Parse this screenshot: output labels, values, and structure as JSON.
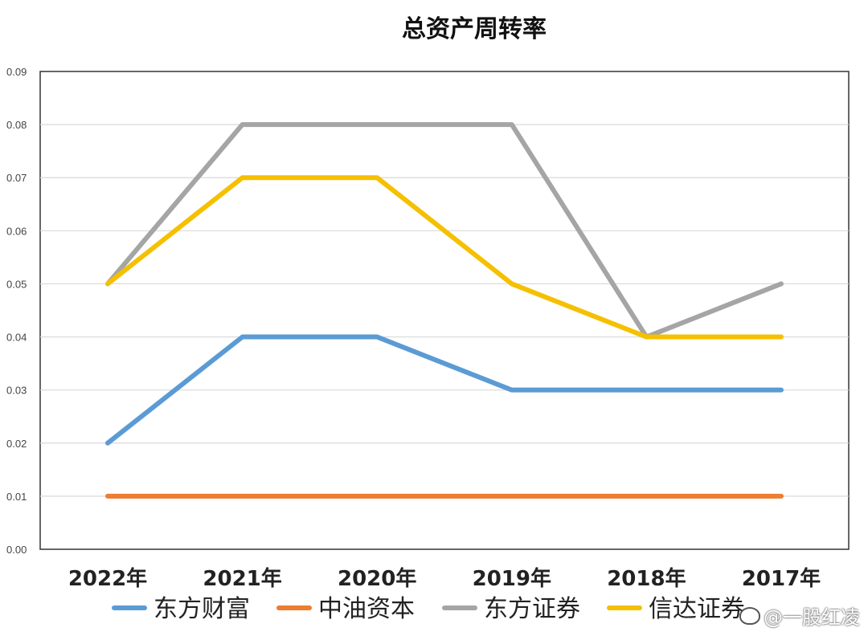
{
  "chart_data": {
    "type": "line",
    "title": "总资产周转率",
    "categories": [
      "2022年",
      "2021年",
      "2020年",
      "2019年",
      "2018年",
      "2017年"
    ],
    "ylim": [
      0,
      0.09
    ],
    "yticks": [
      "0.00",
      "0.01",
      "0.02",
      "0.03",
      "0.04",
      "0.05",
      "0.06",
      "0.07",
      "0.08",
      "0.09"
    ],
    "grid": true,
    "legend_position": "bottom",
    "series": [
      {
        "name": "东方财富",
        "color": "#5b9bd5",
        "values": [
          0.02,
          0.04,
          0.04,
          0.03,
          0.03,
          0.03
        ]
      },
      {
        "name": "中油资本",
        "color": "#ed7d31",
        "values": [
          0.01,
          0.01,
          0.01,
          0.01,
          0.01,
          0.01
        ]
      },
      {
        "name": "东方证券",
        "color": "#a5a5a5",
        "values": [
          0.05,
          0.08,
          0.08,
          0.08,
          0.04,
          0.05
        ]
      },
      {
        "name": "信达证券",
        "color": "#f5c000",
        "values": [
          0.05,
          0.07,
          0.07,
          0.05,
          0.04,
          0.04
        ]
      }
    ]
  },
  "watermark": {
    "text": "@一股红凌",
    "icon": "weibo-icon"
  }
}
